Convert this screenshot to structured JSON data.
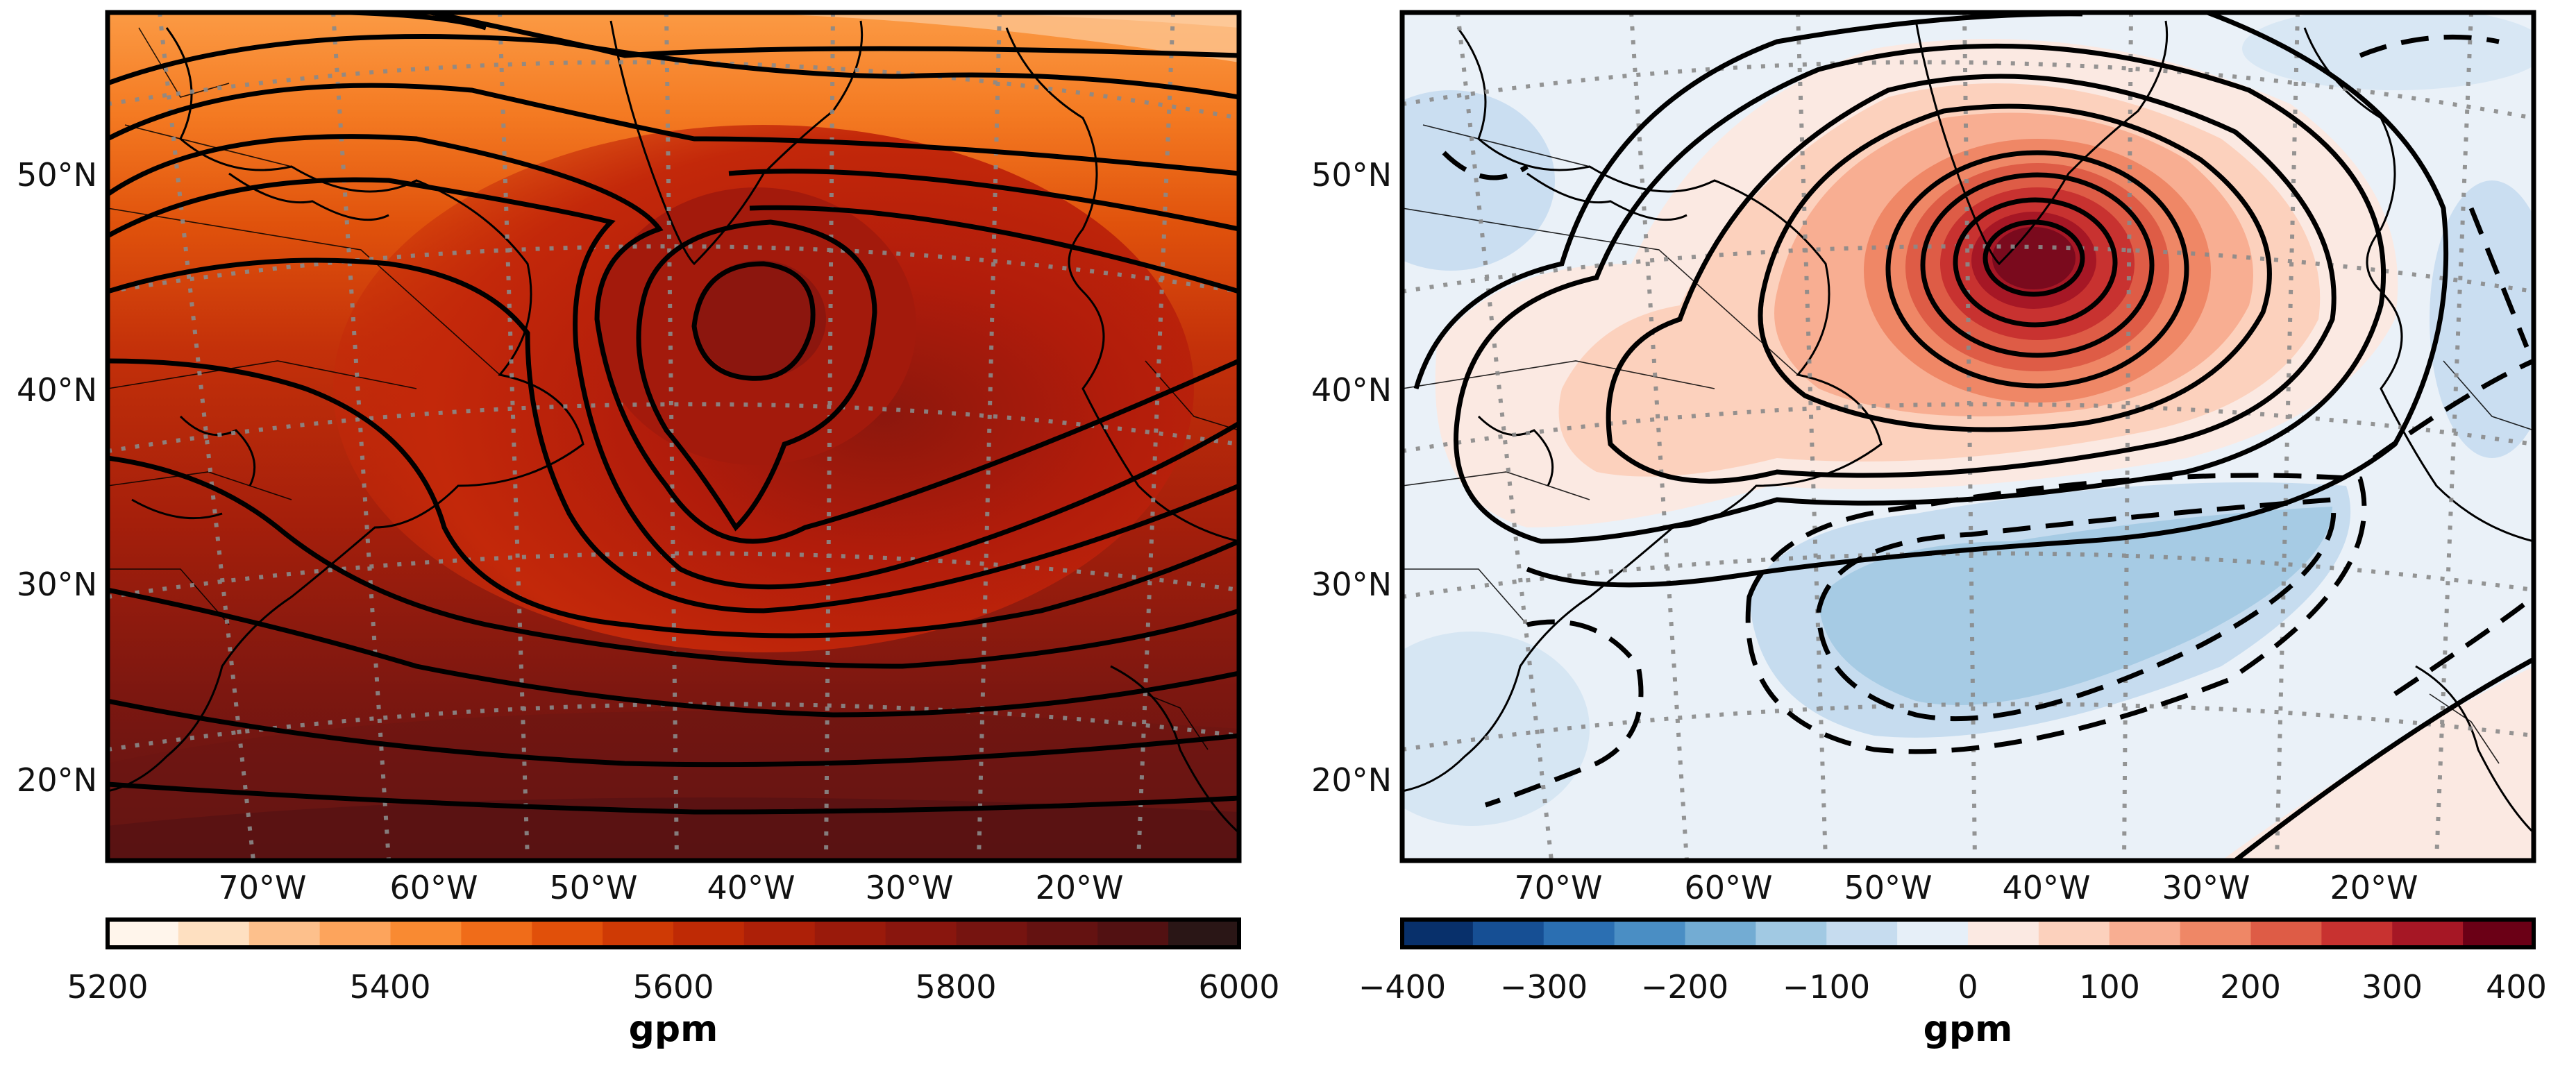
{
  "panels": [
    {
      "id": "left",
      "lat_labels": [
        "50°N",
        "40°N",
        "30°N",
        "20°N"
      ],
      "lon_labels": [
        "70°W",
        "60°W",
        "50°W",
        "40°W",
        "30°W",
        "20°W"
      ],
      "colorbar": {
        "ticks": [
          "5200",
          "5400",
          "5600",
          "5800",
          "6000"
        ],
        "min": 5200,
        "max": 6000,
        "levels": 16,
        "colors": [
          "#fff5eb",
          "#fee0c1",
          "#fdc08c",
          "#fda45c",
          "#f98a32",
          "#f06c19",
          "#e1500a",
          "#cf3a05",
          "#bf2a05",
          "#ad2008",
          "#9a1a0b",
          "#89160e",
          "#761410",
          "#641211",
          "#521112",
          "#2a1616"
        ],
        "label": "gpm"
      }
    },
    {
      "id": "right",
      "lat_labels": [
        "50°N",
        "40°N",
        "30°N",
        "20°N"
      ],
      "lon_labels": [
        "70°W",
        "60°W",
        "50°W",
        "40°W",
        "30°W",
        "20°W"
      ],
      "colorbar": {
        "ticks": [
          "−400",
          "−300",
          "−200",
          "−100",
          "0",
          "100",
          "200",
          "300",
          "400"
        ],
        "min": -400,
        "max": 400,
        "levels": 16,
        "colors": [
          "#08306b",
          "#164f94",
          "#2b6fb2",
          "#4a8ec4",
          "#73acd3",
          "#a1c9e3",
          "#c6dcef",
          "#e6eff8",
          "#fbe9e2",
          "#fcd1bd",
          "#f8ae92",
          "#ef8766",
          "#de5c46",
          "#c83230",
          "#a61725",
          "#6b0016"
        ],
        "label": "gpm"
      }
    }
  ]
}
